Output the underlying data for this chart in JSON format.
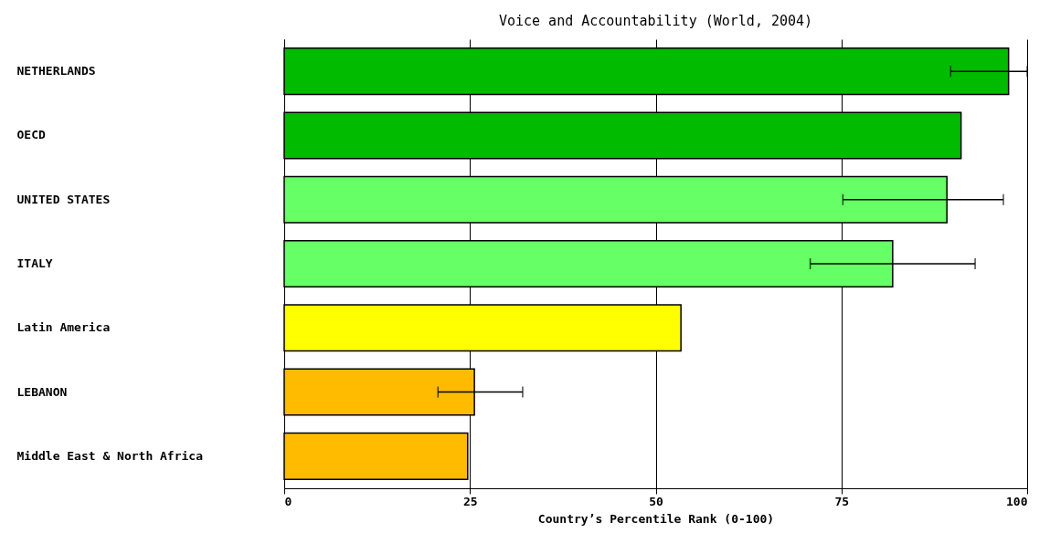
{
  "chart_data": {
    "type": "bar",
    "orientation": "horizontal",
    "title": "Voice and Accountability (World, 2004)",
    "xlabel": "Country’s Percentile Rank (0-100)",
    "categories": [
      "NETHERLANDS",
      "OECD",
      "UNITED STATES",
      "ITALY",
      "Latin America",
      "LEBANON",
      "Middle East & North Africa"
    ],
    "values": [
      97.5,
      91.1,
      89.2,
      81.9,
      53.4,
      25.6,
      24.7
    ],
    "colors": [
      "#00bb00",
      "#00bb00",
      "#66ff66",
      "#66ff66",
      "#ffff00",
      "#ffbb00",
      "#ffbb00"
    ],
    "errors": [
      [
        89.7,
        100
      ],
      null,
      [
        75.2,
        96.8
      ],
      [
        70.8,
        93.0
      ],
      null,
      [
        20.7,
        32.1
      ],
      null
    ],
    "xlim": [
      0,
      100
    ],
    "xticks": [
      0,
      25,
      50,
      75,
      100
    ],
    "grid": "x"
  }
}
